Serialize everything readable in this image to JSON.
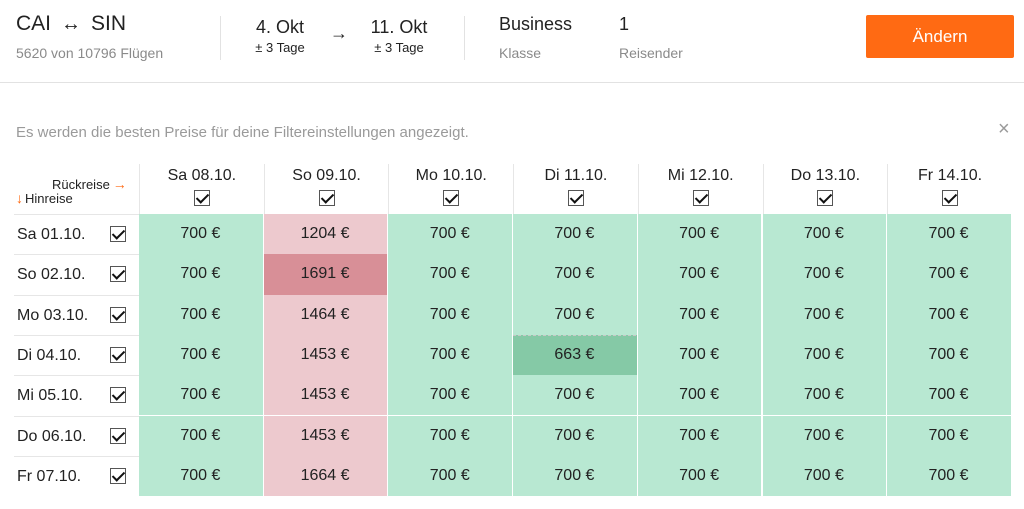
{
  "header": {
    "origin": "CAI",
    "route_arrow": "↔",
    "destination": "SIN",
    "flights_info": "5620 von 10796 Flügen",
    "outbound_date": "4. Okt",
    "outbound_flex": "± 3 Tage",
    "date_arrow": "→",
    "return_date": "11. Okt",
    "return_flex": "± 3 Tage",
    "class_value": "Business",
    "class_label": "Klasse",
    "travelers_value": "1",
    "travelers_label": "Reisender",
    "change_button": "Ändern"
  },
  "notice": {
    "text": "Es werden die besten Preise für deine Filtereinstellungen angezeigt.",
    "close_icon": "×"
  },
  "matrix": {
    "return_label": "Rückreise",
    "return_arrow": "→",
    "outbound_label": "Hinreise",
    "outbound_arrow": "↓",
    "columns": [
      "Sa 08.10.",
      "So 09.10.",
      "Mo 10.10.",
      "Di 11.10.",
      "Mi 12.10.",
      "Do 13.10.",
      "Fr 14.10."
    ],
    "rows": [
      {
        "label": "Sa 01.10.",
        "prices": [
          "700 €",
          "1204 €",
          "700 €",
          "700 €",
          "700 €",
          "700 €",
          "700 €"
        ]
      },
      {
        "label": "So 02.10.",
        "prices": [
          "700 €",
          "1691 €",
          "700 €",
          "700 €",
          "700 €",
          "700 €",
          "700 €"
        ]
      },
      {
        "label": "Mo 03.10.",
        "prices": [
          "700 €",
          "1464 €",
          "700 €",
          "700 €",
          "700 €",
          "700 €",
          "700 €"
        ]
      },
      {
        "label": "Di 04.10.",
        "prices": [
          "700 €",
          "1453 €",
          "700 €",
          "663 €",
          "700 €",
          "700 €",
          "700 €"
        ]
      },
      {
        "label": "Mi 05.10.",
        "prices": [
          "700 €",
          "1453 €",
          "700 €",
          "700 €",
          "700 €",
          "700 €",
          "700 €"
        ]
      },
      {
        "label": "Do 06.10.",
        "prices": [
          "700 €",
          "1453 €",
          "700 €",
          "700 €",
          "700 €",
          "700 €",
          "700 €"
        ]
      },
      {
        "label": "Fr 07.10.",
        "prices": [
          "700 €",
          "1664 €",
          "700 €",
          "700 €",
          "700 €",
          "700 €",
          "700 €"
        ]
      }
    ],
    "cell_styles": [
      [
        "green",
        "pink",
        "green",
        "green",
        "green",
        "green",
        "green"
      ],
      [
        "green",
        "red",
        "green",
        "green",
        "green",
        "green",
        "green"
      ],
      [
        "green",
        "pink",
        "green",
        "green",
        "green",
        "green",
        "green"
      ],
      [
        "green",
        "pink",
        "green",
        "best",
        "green",
        "green",
        "green"
      ],
      [
        "green",
        "pink",
        "green",
        "green",
        "green",
        "green",
        "green"
      ],
      [
        "green",
        "pink",
        "green",
        "green",
        "green",
        "green",
        "green"
      ],
      [
        "green",
        "pink",
        "green",
        "green",
        "green",
        "green",
        "green"
      ]
    ]
  },
  "colors": {
    "accent": "#ff6a13",
    "cheap": "#b8e8d2",
    "cheapest": "#85c9a6",
    "expensive": "#edc9ce",
    "most_expensive": "#d88f97"
  }
}
